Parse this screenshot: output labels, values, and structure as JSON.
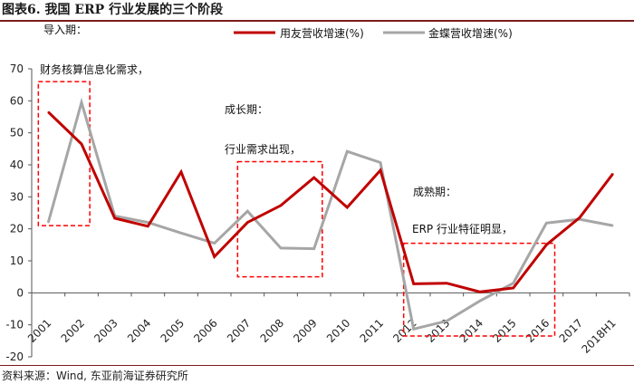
{
  "header": {
    "title": "图表6.   我国 ERP 行业发展的三个阶段"
  },
  "footer": {
    "source": "资料来源：Wind, 东亚前海证券研究所"
  },
  "colors": {
    "series_1": "#c00000",
    "series_2": "#a6a6a6",
    "box": "#ff0000",
    "rule": "#7b1c1c"
  },
  "chart_data": {
    "type": "line",
    "title": "",
    "xlabel": "",
    "ylabel": "",
    "categories": [
      "2001",
      "2002",
      "2003",
      "2004",
      "2005",
      "2006",
      "2007",
      "2008",
      "2009",
      "2010",
      "2011",
      "2012",
      "2013",
      "2014",
      "2015",
      "2016",
      "2017",
      "2018H1"
    ],
    "ylim": [
      -20,
      70
    ],
    "yticks": [
      -20,
      -10,
      0,
      10,
      20,
      30,
      40,
      50,
      60,
      70
    ],
    "grid": false,
    "legend_position": "top",
    "series": [
      {
        "name": "用友营收增速(%)",
        "values": [
          56.5,
          46.5,
          23.3,
          20.8,
          37.8,
          11.3,
          22.0,
          27.3,
          36.0,
          26.7,
          38.3,
          2.8,
          3.0,
          0.3,
          1.5,
          15.0,
          23.5,
          37.2
        ]
      },
      {
        "name": "金蝶营收增速(%)",
        "values": [
          22.0,
          59.5,
          24.0,
          22.0,
          18.7,
          15.5,
          25.5,
          14.0,
          13.8,
          44.2,
          40.7,
          -11.3,
          -8.8,
          -2.5,
          3.0,
          21.8,
          23.0,
          21.0
        ]
      }
    ],
    "annotations": {
      "stage1_label": "导入期：",
      "stage1_desc": "财务核算信息化需求，",
      "stage2_label": "成长期：",
      "stage2_desc": "行业需求出现，",
      "stage3_label": "成熟期：",
      "stage3_desc": "ERP 行业特征明显，"
    },
    "boxes": [
      {
        "x_from": "2001",
        "x_to": "2002",
        "y_from": 21,
        "y_to": 66
      },
      {
        "x_from": "2007",
        "x_to": "2009",
        "y_from": 5,
        "y_to": 41
      },
      {
        "x_from": "2012",
        "x_to": "2016",
        "y_from": -13.5,
        "y_to": 15.5
      }
    ]
  }
}
